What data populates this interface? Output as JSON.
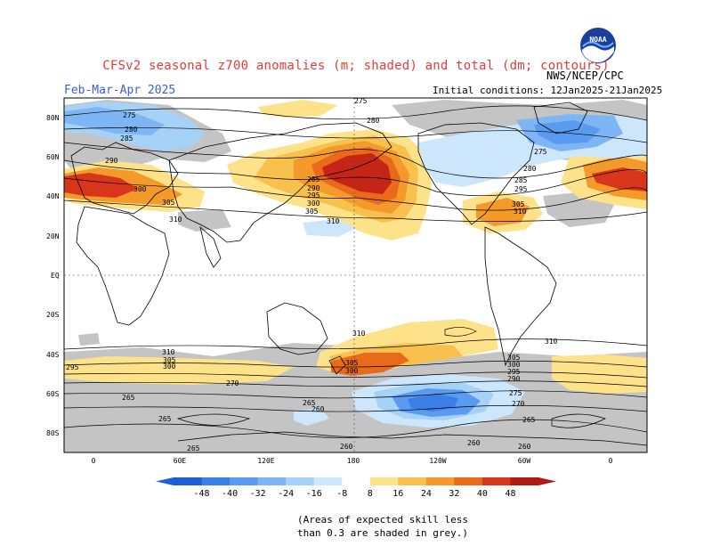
{
  "header": {
    "title": "CFSv2 seasonal z700 anomalies (m; shaded) and total (dm; contours)",
    "period": "Feb-Mar-Apr 2025",
    "initial_conditions": "Initial conditions: 12Jan2025-21Jan2025",
    "agency": "NWS/NCEP/CPC",
    "logo_text": "NOAA"
  },
  "map": {
    "lat_labels": [
      "80N",
      "60N",
      "40N",
      "20N",
      "EQ",
      "20S",
      "40S",
      "60S",
      "80S"
    ],
    "lon_labels": [
      "0",
      "60E",
      "120E",
      "180",
      "120W",
      "60W",
      "0"
    ],
    "contour_labels": [
      "275",
      "280",
      "285",
      "290",
      "295",
      "300",
      "305",
      "310",
      "265",
      "260",
      "270"
    ]
  },
  "colorbar": {
    "ticks": [
      "-48",
      "-40",
      "-32",
      "-24",
      "-16",
      "-8",
      "8",
      "16",
      "24",
      "32",
      "40",
      "48"
    ],
    "colors": [
      "#1f5fd6",
      "#3a7ee8",
      "#5a9af0",
      "#7eb6f5",
      "#a6d2f8",
      "#cce6fb",
      "#ffffff",
      "#fde28a",
      "#f8c04d",
      "#f39a2a",
      "#ea6a1c",
      "#d8361a",
      "#b01a14"
    ]
  },
  "note": {
    "line1": "(Areas of expected skill less",
    "line2": "than 0.3 are shaded in grey.)"
  }
}
